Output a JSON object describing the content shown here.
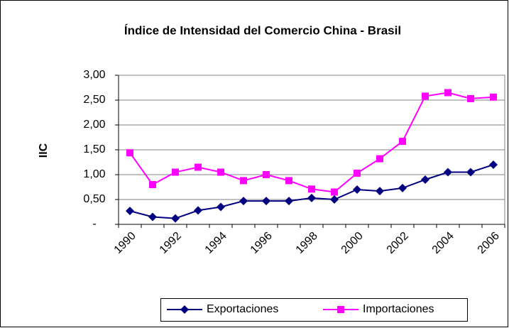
{
  "chart_data": {
    "type": "line",
    "title": "Índice de Intensidad del Comercio China - Brasil",
    "y_label": "IIC",
    "categories": [
      "1990",
      null,
      "1992",
      null,
      "1994",
      null,
      "1996",
      null,
      "1998",
      null,
      "2000",
      null,
      "2002",
      null,
      "2004",
      null,
      "2006"
    ],
    "series": [
      {
        "name": "Exportaciones",
        "color": "#000080",
        "marker": "diamond",
        "values": [
          0.27,
          0.15,
          0.12,
          0.28,
          0.35,
          0.47,
          0.47,
          0.47,
          0.53,
          0.5,
          0.7,
          0.67,
          0.73,
          0.9,
          1.05,
          1.05,
          1.2
        ]
      },
      {
        "name": "Importaciones",
        "color": "#FF00FF",
        "marker": "square",
        "values": [
          1.44,
          0.8,
          1.05,
          1.15,
          1.05,
          0.88,
          1.0,
          0.88,
          0.71,
          0.65,
          1.03,
          1.32,
          1.67,
          2.58,
          2.65,
          2.53,
          2.56
        ]
      }
    ],
    "ylim": [
      0,
      3
    ],
    "yticks": [
      {
        "value": 0,
        "label": "-"
      },
      {
        "value": 0.5,
        "label": "0,50"
      },
      {
        "value": 1,
        "label": "1,00"
      },
      {
        "value": 1.5,
        "label": "1,50"
      },
      {
        "value": 2,
        "label": "2,00"
      },
      {
        "value": 2.5,
        "label": "2,50"
      },
      {
        "value": 3,
        "label": "3,00"
      }
    ],
    "grid": true,
    "legend": "bottom"
  }
}
